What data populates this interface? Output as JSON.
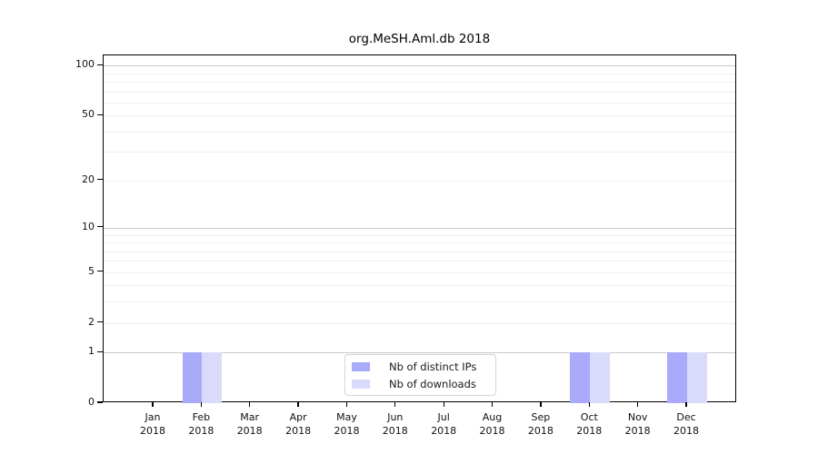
{
  "chart_data": {
    "type": "bar",
    "title": "org.MeSH.Aml.db 2018",
    "categories": [
      "Jan",
      "Feb",
      "Mar",
      "Apr",
      "May",
      "Jun",
      "Jul",
      "Aug",
      "Sep",
      "Oct",
      "Nov",
      "Dec"
    ],
    "year": "2018",
    "series": [
      {
        "name": "Nb of distinct IPs",
        "color": "#aaaafa",
        "values": [
          0,
          1,
          0,
          0,
          0,
          0,
          0,
          0,
          0,
          1,
          0,
          1
        ]
      },
      {
        "name": "Nb of downloads",
        "color": "#dadafa",
        "values": [
          0,
          1,
          0,
          0,
          0,
          0,
          0,
          0,
          0,
          1,
          0,
          1
        ]
      }
    ],
    "xlabel": "",
    "ylabel": "",
    "yscale": "log1p",
    "ylim": [
      0,
      115
    ],
    "y_ticks": [
      0,
      1,
      2,
      5,
      10,
      20,
      50,
      100
    ],
    "y_gridlines_major": [
      1,
      10,
      100
    ],
    "y_gridlines_minor": [
      2,
      3,
      4,
      5,
      6,
      7,
      8,
      9,
      20,
      30,
      40,
      50,
      60,
      70,
      80,
      90
    ],
    "grid": true,
    "legend_position": "lower-center-inside"
  }
}
